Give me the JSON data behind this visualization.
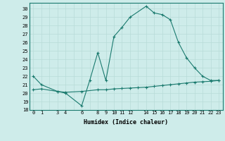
{
  "xlabel": "Humidex (Indice chaleur)",
  "xlim": [
    -0.5,
    23.5
  ],
  "ylim": [
    18,
    30.7
  ],
  "yticks": [
    18,
    19,
    20,
    21,
    22,
    23,
    24,
    25,
    26,
    27,
    28,
    29,
    30
  ],
  "xticks_major": [
    0,
    1,
    2,
    3,
    4,
    5,
    6,
    7,
    8,
    9,
    10,
    11,
    12,
    13,
    14,
    15,
    16,
    17,
    18,
    19,
    20,
    21,
    22,
    23
  ],
  "xtick_labels_positions": [
    0,
    1,
    3,
    4,
    6,
    8,
    9,
    10,
    11,
    12,
    14,
    15,
    16,
    17,
    18,
    19,
    20,
    21,
    22,
    23
  ],
  "bg_color": "#ceecea",
  "line_color": "#1a7a6e",
  "grid_color": "#b8dbd8",
  "line1_x": [
    0,
    1,
    3,
    4,
    6,
    7,
    8,
    9,
    10,
    11,
    12,
    14,
    15,
    16,
    17,
    18,
    19,
    20,
    21,
    22,
    23
  ],
  "line1_y": [
    22,
    21,
    20.2,
    20.0,
    18.5,
    21.5,
    24.8,
    21.5,
    26.7,
    27.8,
    29.0,
    30.3,
    29.5,
    29.3,
    28.7,
    26.0,
    24.2,
    23.0,
    22.0,
    21.5,
    21.5
  ],
  "line2_x": [
    0,
    1,
    3,
    4,
    6,
    8,
    9,
    10,
    11,
    12,
    13,
    14,
    15,
    16,
    17,
    18,
    19,
    20,
    21,
    22,
    23
  ],
  "line2_y": [
    20.4,
    20.5,
    20.2,
    20.1,
    20.2,
    20.4,
    20.4,
    20.5,
    20.55,
    20.6,
    20.65,
    20.7,
    20.8,
    20.9,
    21.0,
    21.1,
    21.2,
    21.3,
    21.35,
    21.4,
    21.5
  ]
}
